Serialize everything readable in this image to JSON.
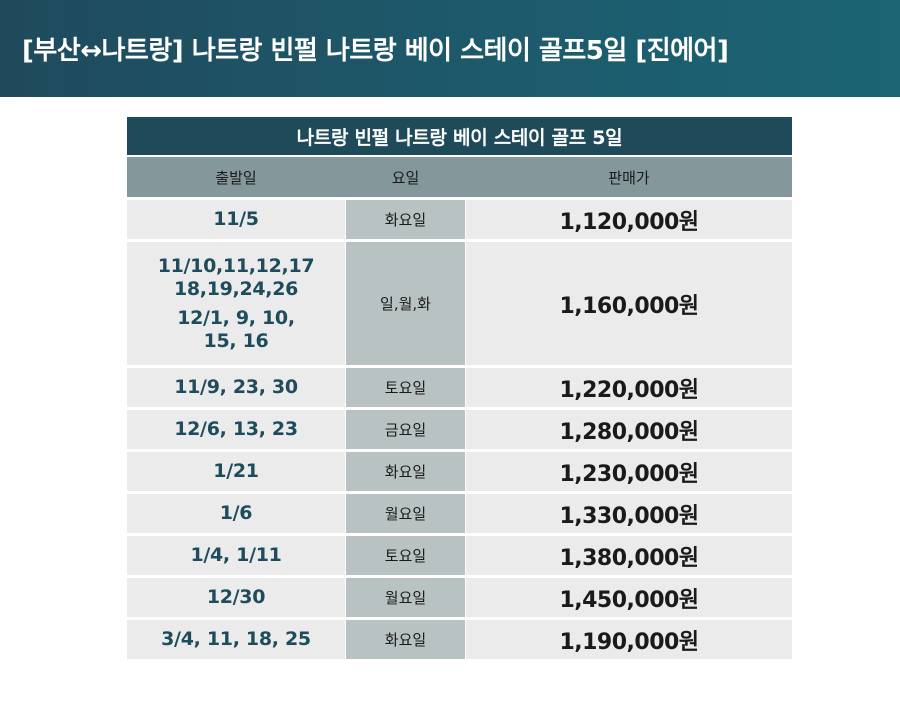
{
  "banner": {
    "title": "[부산↔나트랑] 나트랑 빈펄 나트랑 베이 스테이 골프5일 [진에어]"
  },
  "table": {
    "title": "나트랑 빈펄 나트랑 베이 스테이 골프 5일",
    "headers": {
      "date": "출발일",
      "day": "요일",
      "price": "판매가"
    },
    "rows": [
      {
        "dates": [
          "11/5"
        ],
        "day": "화요일",
        "price": "1,120,000원"
      },
      {
        "dates": [
          "11/10,11,12,17",
          "18,19,24,26",
          "12/1, 9, 10,",
          "15, 16"
        ],
        "day": "일,월,화",
        "price": "1,160,000원"
      },
      {
        "dates": [
          "11/9, 23, 30"
        ],
        "day": "토요일",
        "price": "1,220,000원"
      },
      {
        "dates": [
          "12/6, 13, 23"
        ],
        "day": "금요일",
        "price": "1,280,000원"
      },
      {
        "dates": [
          "1/21"
        ],
        "day": "화요일",
        "price": "1,230,000원"
      },
      {
        "dates": [
          "1/6"
        ],
        "day": "월요일",
        "price": "1,330,000원"
      },
      {
        "dates": [
          "1/4, 1/11"
        ],
        "day": "토요일",
        "price": "1,380,000원"
      },
      {
        "dates": [
          "12/30"
        ],
        "day": "월요일",
        "price": "1,450,000원"
      },
      {
        "dates": [
          "3/4, 11, 18, 25"
        ],
        "day": "화요일",
        "price": "1,190,000원"
      }
    ]
  },
  "colors": {
    "banner": "#1d5a6c",
    "table_title": "#1e4a5a",
    "header": "#84989c",
    "day_cell": "#b9c2c3",
    "cell": "#ebebeb",
    "date_text": "#1e4c5c"
  }
}
